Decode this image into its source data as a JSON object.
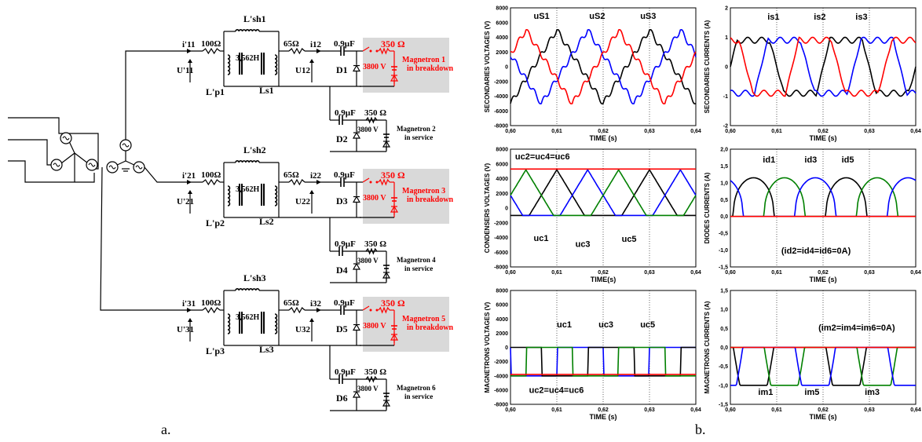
{
  "captions": {
    "a": "a.",
    "b": "b."
  },
  "colors": {
    "black": "#000000",
    "blue": "#0000ff",
    "red": "#ff0000",
    "green": "#008000",
    "fault_box": "#d9d9d9"
  },
  "circuit": {
    "branches": [
      {
        "i_in": "i'11",
        "u_in": "U'11",
        "r_series": "100Ω",
        "l_sh": "L'sh1",
        "l_prim": "L'p1",
        "inductance": "3,562H",
        "l_sec": "Ls1",
        "r_sec": "65Ω",
        "i_out": "i12",
        "u_out": "U12",
        "cap": "0.9µF",
        "r_load": "350 Ω",
        "v_src": "3800 V",
        "diode": "D1",
        "mag": [
          "Magnetron 1",
          "in breakdown"
        ],
        "faulted": true,
        "sub": {
          "cap": "0.9µF",
          "r_load": "350 Ω",
          "v_src": "3800 V",
          "diode": "D2",
          "mag": [
            "Magnetron 2",
            "in service"
          ]
        }
      },
      {
        "i_in": "i'21",
        "u_in": "U'21",
        "r_series": "100Ω",
        "l_sh": "L'sh2",
        "l_prim": "L'p2",
        "inductance": "3,562H",
        "l_sec": "Ls2",
        "r_sec": "65Ω",
        "i_out": "i22",
        "u_out": "U22",
        "cap": "0.9µF",
        "r_load": "350 Ω",
        "v_src": "3800 V",
        "diode": "D3",
        "mag": [
          "Magnetron 3",
          "in breakdown"
        ],
        "faulted": true,
        "sub": {
          "cap": "0.9µF",
          "r_load": "350 Ω",
          "v_src": "3800 V",
          "diode": "D4",
          "mag": [
            "Magnetron 4",
            "in service"
          ]
        }
      },
      {
        "i_in": "i'31",
        "u_in": "U'31",
        "r_series": "100Ω",
        "l_sh": "L'sh3",
        "l_prim": "L'p3",
        "inductance": "3,562H",
        "l_sec": "Ls3",
        "r_sec": "65Ω",
        "i_out": "i32",
        "u_out": "U32",
        "cap": "0.9µF",
        "r_load": "350 Ω",
        "v_src": "3800 V",
        "diode": "D5",
        "mag": [
          "Magnetron 5",
          "in breakdown"
        ],
        "faulted": true,
        "sub": {
          "cap": "0.9µF",
          "r_load": "350 Ω",
          "v_src": "3800 V",
          "diode": "D6",
          "mag": [
            "Magnetron 6",
            "in service"
          ]
        }
      }
    ]
  },
  "plots": [
    {
      "ylabel": "SECONDARIES VOLTAGES (V)",
      "xlabel": "TIME (s)",
      "y_ticks": [
        "8000",
        "6000",
        "4000",
        "2000",
        "0",
        "-2000",
        "-4000",
        "-6000",
        "-8000"
      ],
      "x_ticks": [
        "0,60",
        "0,61",
        "0,62",
        "0,63",
        "0,64"
      ],
      "labels": [
        "uS1",
        "uS2",
        "uS3"
      ],
      "ylim": [
        -8000,
        8000
      ],
      "xlim": [
        0.6,
        0.64
      ]
    },
    {
      "ylabel": "SECONDARIES CURRENTS (A)",
      "xlabel": "TIME (s)",
      "y_ticks": [
        "2",
        "1",
        "0",
        "-1",
        "-2"
      ],
      "x_ticks": [
        "0,60",
        "0,61",
        "0,62",
        "0,63",
        "0,64"
      ],
      "labels": [
        "is1",
        "is2",
        "is3"
      ],
      "ylim": [
        -2,
        2
      ],
      "xlim": [
        0.6,
        0.64
      ]
    },
    {
      "ylabel": "CONDENSERS VOLTAGES (V)",
      "xlabel": "TIME(s)",
      "y_ticks": [
        "8000",
        "6000",
        "4000",
        "2000",
        "0",
        "-2000",
        "-4000",
        "-6000",
        "-8000"
      ],
      "x_ticks": [
        "0,60",
        "0,61",
        "0,62",
        "0,63",
        "0,64"
      ],
      "labels": [
        "uc2=uc4=uc6",
        "uc1",
        "uc3",
        "uc5"
      ],
      "ylim": [
        -8000,
        8000
      ],
      "xlim": [
        0.6,
        0.64
      ]
    },
    {
      "ylabel": "DIODES CURRENTS (A)",
      "xlabel": "TIME (s)",
      "y_ticks": [
        "2,0",
        "1,5",
        "1,0",
        "0,5",
        "0,0",
        "-0,5",
        "-1,0",
        "-1,5"
      ],
      "x_ticks": [
        "0,60",
        "0,61",
        "0,62",
        "0,63",
        "0,64"
      ],
      "labels": [
        "id1",
        "id3",
        "id5",
        "(id2=id4=id6=0A)"
      ],
      "ylim": [
        -1.5,
        2.0
      ],
      "xlim": [
        0.6,
        0.64
      ]
    },
    {
      "ylabel": "MAGNETRONS VOLTAGES (V)",
      "xlabel": "TIME (s)",
      "y_ticks": [
        "8000",
        "6000",
        "4000",
        "2000",
        "0",
        "-2000",
        "-4000",
        "-6000",
        "-8000"
      ],
      "x_ticks": [
        "0,60",
        "0,61",
        "0,62",
        "0,63",
        "0,64"
      ],
      "labels": [
        "uc1",
        "uc3",
        "uc5",
        "uc2=uc4=uc6"
      ],
      "ylim": [
        -8000,
        8000
      ],
      "xlim": [
        0.6,
        0.64
      ]
    },
    {
      "ylabel": "MAGNETRONS CURRENTS (A)",
      "xlabel": "TIME (s)",
      "y_ticks": [
        "1,5",
        "1,0",
        "0,5",
        "0,0",
        "-0,5",
        "-1,0",
        "-1,5"
      ],
      "x_ticks": [
        "0,60",
        "0,61",
        "0,62",
        "0,63",
        "0,64"
      ],
      "labels": [
        "(im2=im4=im6=0A)",
        "im1",
        "im5",
        "im3"
      ],
      "ylim": [
        -1.5,
        1.5
      ],
      "xlim": [
        0.6,
        0.64
      ]
    }
  ]
}
